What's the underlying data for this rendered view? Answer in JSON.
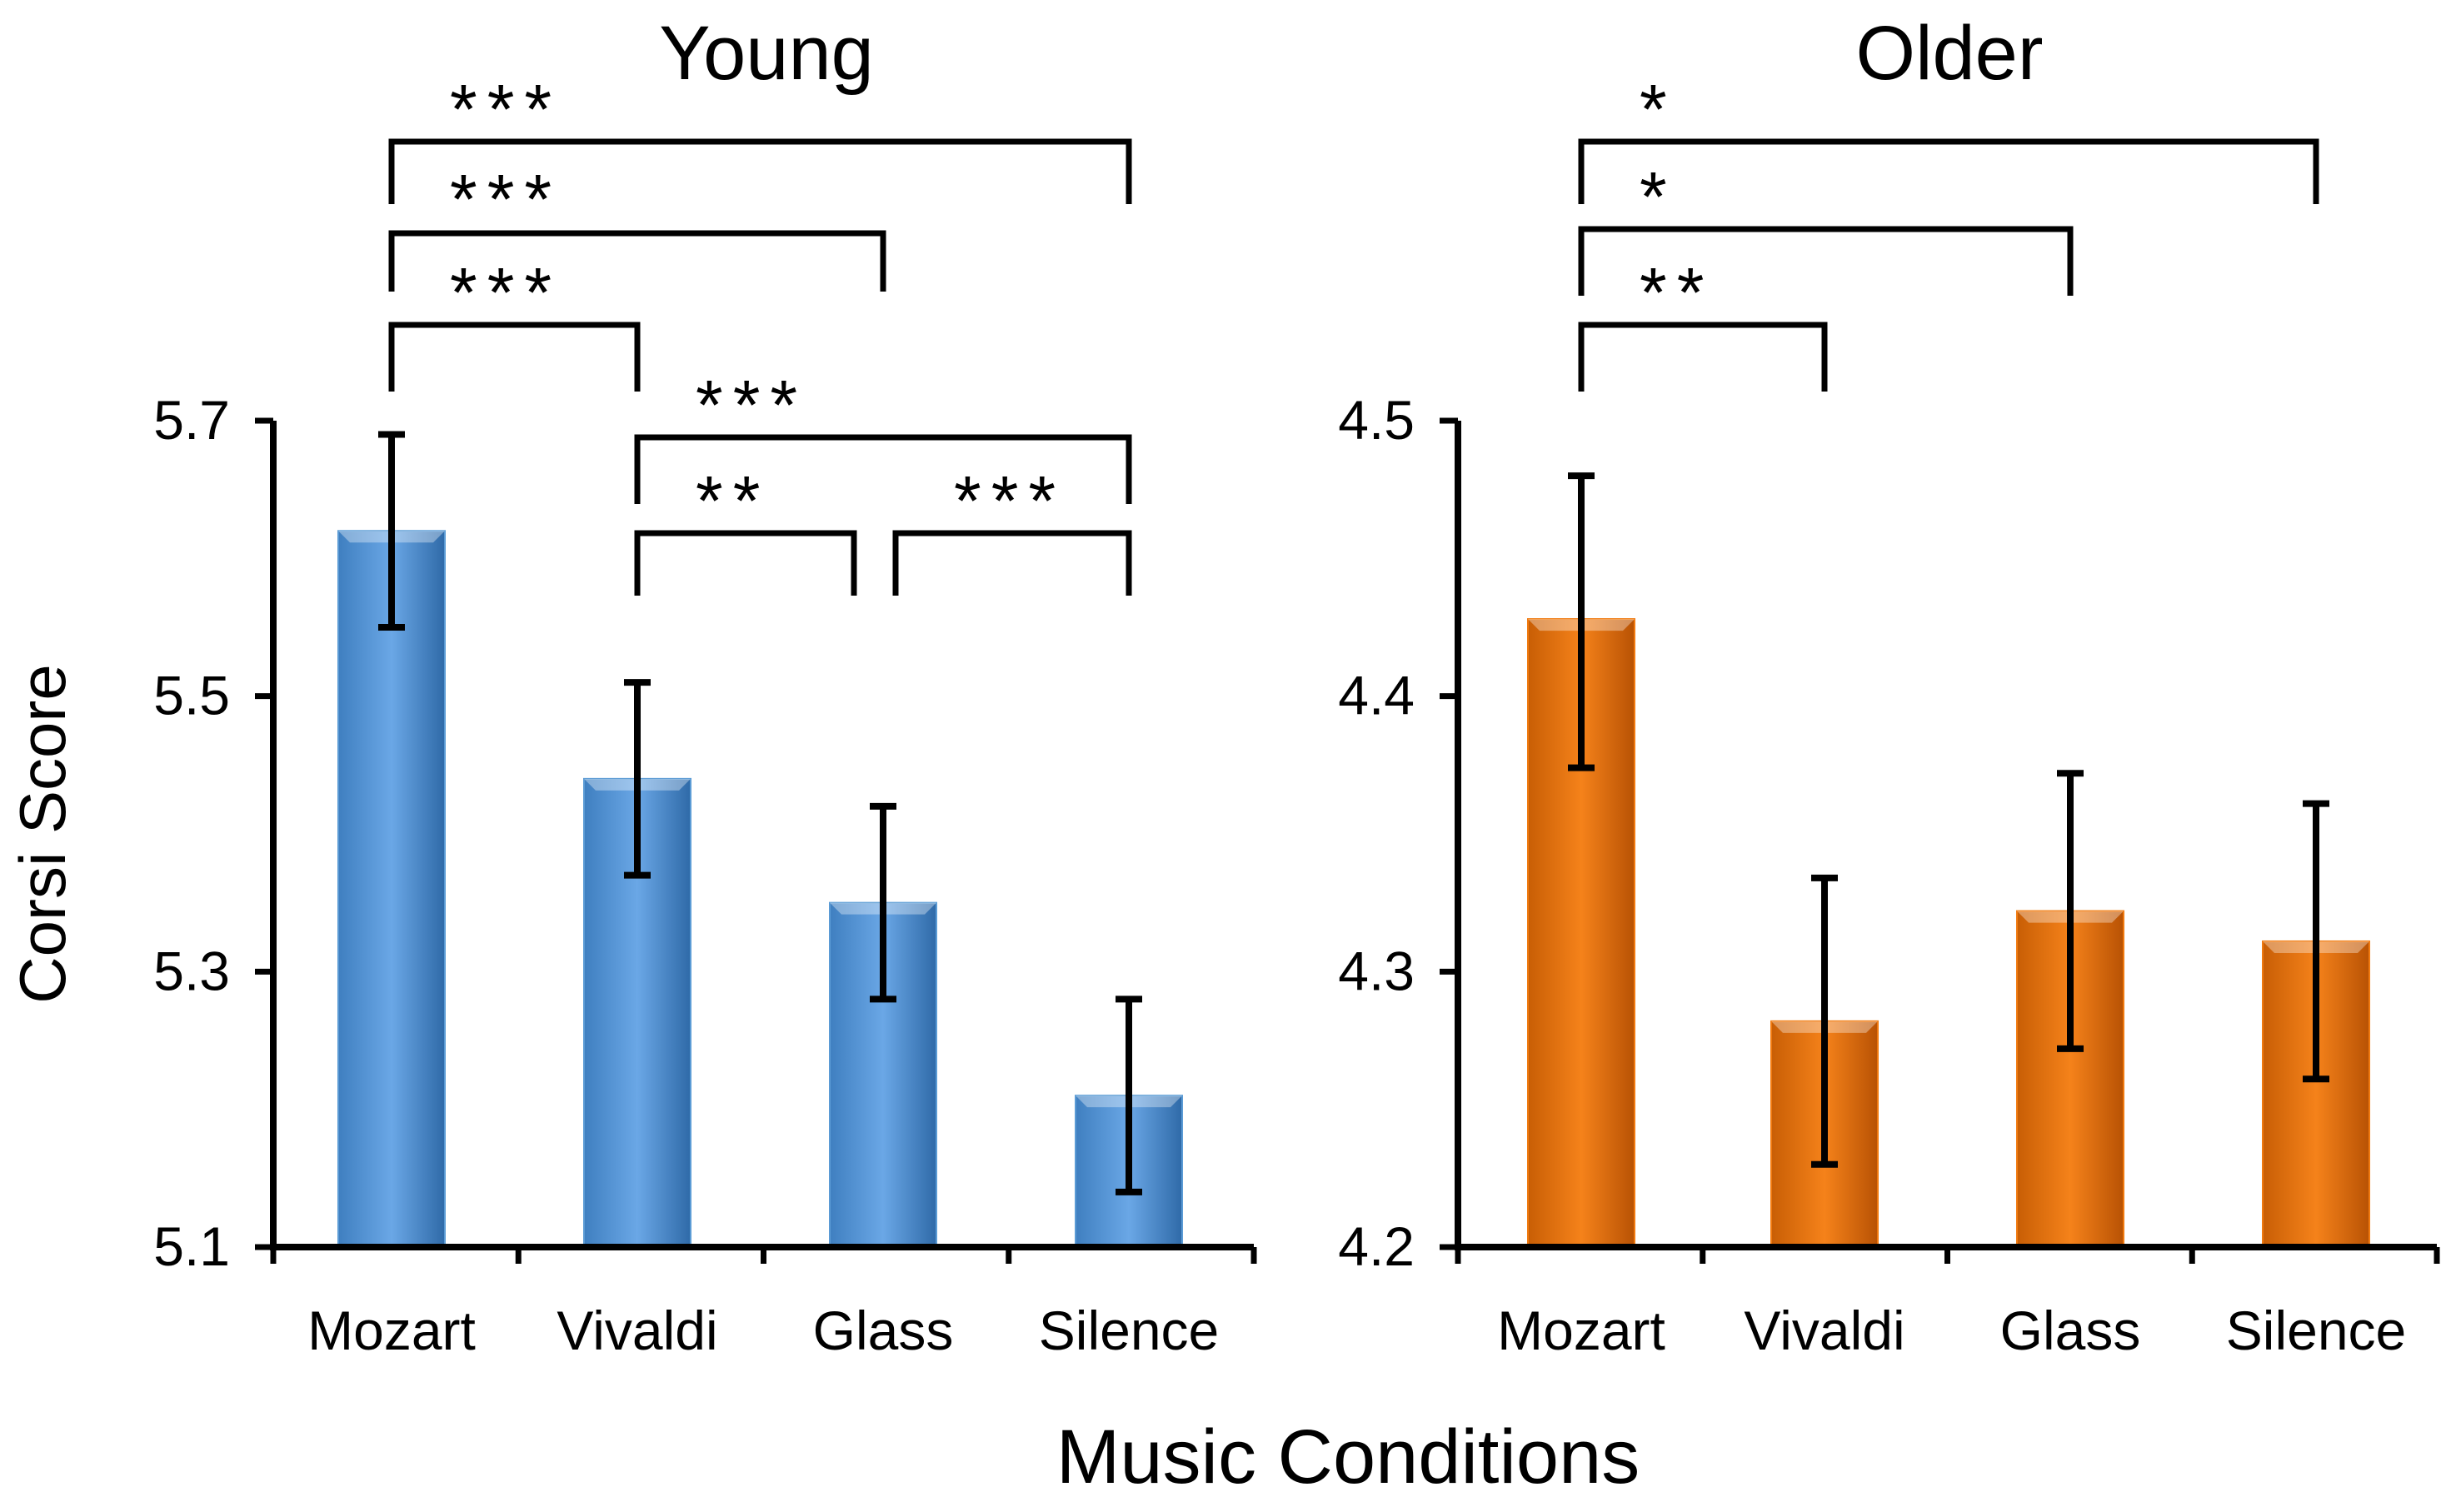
{
  "shared_xlabel": "Music Conditions",
  "chart_data": [
    {
      "type": "bar",
      "title": "Young",
      "ylabel": "Corsi Score",
      "xlabel": "",
      "categories": [
        "Mozart",
        "Vivaldi",
        "Glass",
        "Silence"
      ],
      "values": [
        5.62,
        5.44,
        5.35,
        5.21
      ],
      "error_low": [
        5.55,
        5.37,
        5.28,
        5.14
      ],
      "error_high": [
        5.69,
        5.51,
        5.42,
        5.28
      ],
      "ylim": [
        5.1,
        5.7
      ],
      "yticks": [
        "5.1",
        "5.3",
        "5.5",
        "5.7"
      ],
      "color": "#5b9bd5",
      "significance": [
        {
          "from": "Mozart",
          "to": "Silence",
          "label": "***"
        },
        {
          "from": "Mozart",
          "to": "Glass",
          "label": "***"
        },
        {
          "from": "Mozart",
          "to": "Vivaldi",
          "label": "***"
        },
        {
          "from": "Vivaldi",
          "to": "Silence",
          "label": "***"
        },
        {
          "from": "Vivaldi",
          "to": "Glass",
          "label": "**"
        },
        {
          "from": "Glass",
          "to": "Silence",
          "label": "***"
        }
      ]
    },
    {
      "type": "bar",
      "title": "Older",
      "ylabel": "",
      "xlabel": "",
      "categories": [
        "Mozart",
        "Vivaldi",
        "Glass",
        "Silence"
      ],
      "values": [
        4.428,
        4.282,
        4.322,
        4.311
      ],
      "error_low": [
        4.374,
        4.23,
        4.272,
        4.261
      ],
      "error_high": [
        4.48,
        4.334,
        4.372,
        4.361
      ],
      "ylim": [
        4.2,
        4.5
      ],
      "yticks": [
        "4.2",
        "4.3",
        "4.4",
        "4.5"
      ],
      "color": "#f07a10",
      "significance": [
        {
          "from": "Mozart",
          "to": "Silence",
          "label": "*"
        },
        {
          "from": "Mozart",
          "to": "Glass",
          "label": "*"
        },
        {
          "from": "Mozart",
          "to": "Vivaldi",
          "label": "**"
        }
      ]
    }
  ]
}
